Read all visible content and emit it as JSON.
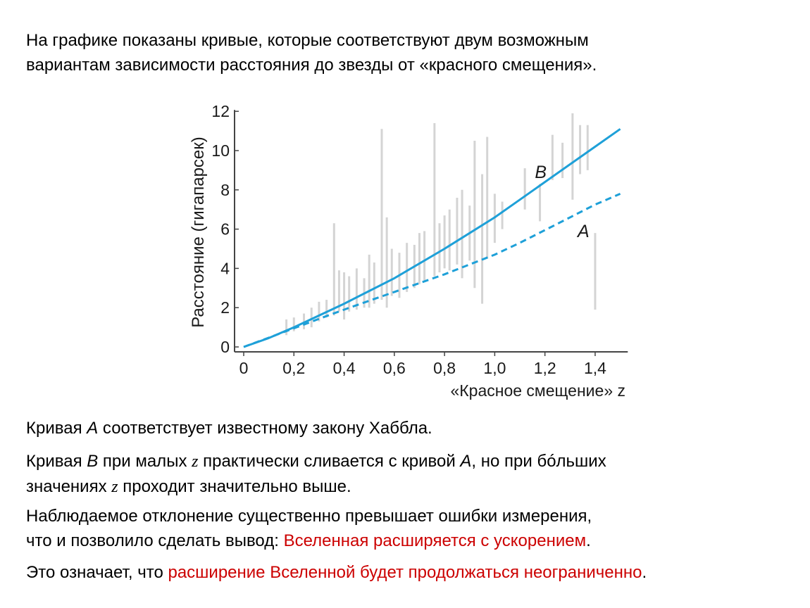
{
  "intro": {
    "line1": "На графике показаны кривые, которые соответствуют двум возможным",
    "line2": "вариантам зависимости расстояния до звезды от «красного смещения»."
  },
  "para_a": {
    "p1": "Кривая ",
    "a": "A",
    "p2": " соответствует известному закону Хаббла."
  },
  "para_b": {
    "p1": "Кривая ",
    "b": "B",
    "p2": " при малых ",
    "z1": "z",
    "p3": " практически сливается с кривой ",
    "a": "A",
    "p4": ", но при бóльших",
    "p5": "значениях ",
    "z2": "z",
    "p6": " проходит значительно выше."
  },
  "para_c": {
    "line1": "Наблюдаемое отклонение существенно превышает ошибки измерения,",
    "p1": "что и позволило сделать вывод: ",
    "red": "Вселенная расширяется с ускорением",
    "p2": "."
  },
  "para_d": {
    "p1": "Это означает, что ",
    "red": "расширение Вселенной будет продолжаться неограниченно",
    "p2": "."
  },
  "colors": {
    "curve": "#1ea0d8",
    "errorbar": "#d4d4d4",
    "highlight": "#cc0000"
  },
  "chart_data": {
    "type": "line",
    "xlabel": "«Красное смещение» z",
    "ylabel": "Расстояние (гигапарсек)",
    "xlim": [
      -0.04,
      1.53
    ],
    "ylim": [
      0,
      12
    ],
    "x_ticks": [
      "0",
      "0,2",
      "0,4",
      "0,6",
      "0,8",
      "1,0",
      "1,2",
      "1,4"
    ],
    "x_tick_values": [
      0,
      0.2,
      0.4,
      0.6,
      0.8,
      1.0,
      1.2,
      1.4
    ],
    "y_ticks": [
      "0",
      "2",
      "4",
      "6",
      "8",
      "10",
      "12"
    ],
    "y_tick_values": [
      0,
      2,
      4,
      6,
      8,
      10,
      12
    ],
    "grid": false,
    "series": [
      {
        "name": "B",
        "style": "solid",
        "label": "B",
        "x": [
          0,
          0.1,
          0.2,
          0.3,
          0.4,
          0.5,
          0.6,
          0.7,
          0.8,
          0.9,
          1.0,
          1.1,
          1.2,
          1.3,
          1.4,
          1.5
        ],
        "y": [
          0,
          0.45,
          1.0,
          1.6,
          2.2,
          2.85,
          3.5,
          4.25,
          5.0,
          5.8,
          6.6,
          7.5,
          8.4,
          9.3,
          10.2,
          11.1
        ]
      },
      {
        "name": "A",
        "style": "dashed",
        "label": "A",
        "x": [
          0,
          0.1,
          0.2,
          0.3,
          0.4,
          0.5,
          0.6,
          0.7,
          0.8,
          0.9,
          1.0,
          1.1,
          1.2,
          1.3,
          1.4,
          1.5
        ],
        "y": [
          0,
          0.47,
          0.95,
          1.43,
          1.9,
          2.35,
          2.8,
          3.25,
          3.7,
          4.2,
          4.7,
          5.3,
          5.95,
          6.6,
          7.25,
          7.8
        ]
      }
    ],
    "error_bars": [
      [
        0.17,
        0.6,
        1.4
      ],
      [
        0.2,
        0.8,
        1.5
      ],
      [
        0.24,
        0.9,
        1.7
      ],
      [
        0.27,
        1.0,
        2.0
      ],
      [
        0.3,
        1.3,
        2.3
      ],
      [
        0.33,
        1.5,
        2.4
      ],
      [
        0.36,
        1.6,
        6.3
      ],
      [
        0.38,
        1.8,
        3.9
      ],
      [
        0.4,
        1.4,
        3.8
      ],
      [
        0.42,
        1.8,
        3.6
      ],
      [
        0.45,
        1.9,
        4.0
      ],
      [
        0.48,
        2.0,
        3.5
      ],
      [
        0.5,
        2.0,
        4.7
      ],
      [
        0.52,
        2.2,
        4.3
      ],
      [
        0.55,
        2.4,
        11.1
      ],
      [
        0.57,
        2.0,
        6.6
      ],
      [
        0.59,
        2.6,
        5.0
      ],
      [
        0.62,
        2.5,
        4.8
      ],
      [
        0.65,
        2.8,
        5.3
      ],
      [
        0.68,
        3.0,
        5.2
      ],
      [
        0.7,
        3.2,
        5.8
      ],
      [
        0.72,
        3.4,
        5.9
      ],
      [
        0.76,
        3.6,
        11.4
      ],
      [
        0.78,
        3.8,
        6.3
      ],
      [
        0.8,
        4.0,
        6.7
      ],
      [
        0.82,
        3.9,
        7.0
      ],
      [
        0.85,
        4.2,
        7.6
      ],
      [
        0.87,
        3.5,
        8.0
      ],
      [
        0.9,
        4.4,
        7.2
      ],
      [
        0.92,
        3.0,
        10.5
      ],
      [
        0.95,
        2.2,
        8.8
      ],
      [
        0.97,
        4.5,
        10.7
      ],
      [
        1.0,
        5.3,
        7.8
      ],
      [
        1.03,
        6.0,
        7.4
      ],
      [
        1.12,
        7.0,
        9.1
      ],
      [
        1.18,
        6.4,
        8.3
      ],
      [
        1.23,
        8.5,
        10.8
      ],
      [
        1.27,
        8.6,
        10.4
      ],
      [
        1.31,
        7.5,
        11.9
      ],
      [
        1.34,
        8.8,
        11.3
      ],
      [
        1.37,
        9.0,
        11.3
      ],
      [
        1.4,
        1.9,
        5.8
      ]
    ]
  }
}
